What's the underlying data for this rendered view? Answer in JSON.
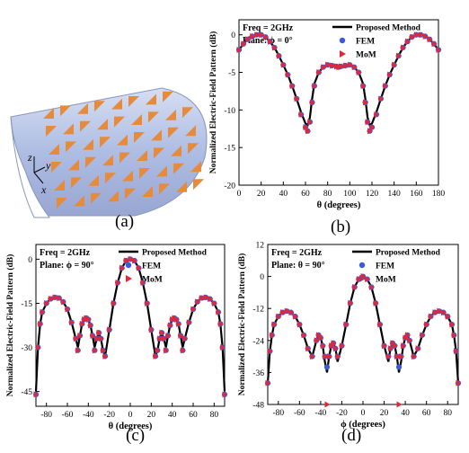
{
  "palette": {
    "method": "#000000",
    "fem": "#3b5bd6",
    "mom": "#e0283a",
    "cyl_body": "#b9c7e8",
    "cyl_edge": "#8796bd",
    "patch": "#e68a3c"
  },
  "panel_a": {
    "caption": "(a)",
    "axes": {
      "z": "z",
      "y": "y",
      "x": "x"
    }
  },
  "chart_data": [
    {
      "id": "b",
      "type": "line",
      "caption": "(b)",
      "annotation_line1": "Freq = 2GHz",
      "annotation_line2": "Plane: ϕ = 0°",
      "xlabel": "θ (degrees)",
      "ylabel": "Normalized Electric-Field Pattern (dB)",
      "xlim": [
        0,
        180
      ],
      "ylim": [
        -20,
        2
      ],
      "xticks": [
        0,
        20,
        40,
        60,
        80,
        100,
        120,
        140,
        160,
        180
      ],
      "yticks": [
        0,
        -5,
        -10,
        -15,
        -20
      ],
      "legend": [
        "Proposed Method",
        "FEM",
        "MoM"
      ],
      "legend_position": "top-right",
      "x": [
        0,
        4,
        8,
        12,
        16,
        20,
        24,
        28,
        32,
        36,
        40,
        44,
        48,
        52,
        56,
        60,
        62,
        64,
        66,
        68,
        72,
        76,
        80,
        84,
        88,
        90,
        92,
        96,
        100,
        104,
        108,
        112,
        114,
        116,
        118,
        120,
        124,
        128,
        132,
        136,
        140,
        144,
        148,
        152,
        156,
        160,
        164,
        168,
        172,
        176,
        180
      ],
      "series": [
        {
          "name": "Proposed Method",
          "values": [
            -2,
            -1.2,
            -0.6,
            -0.2,
            0,
            0,
            -0.3,
            -0.9,
            -1.7,
            -2.8,
            -4,
            -5.3,
            -6.8,
            -8.5,
            -10.3,
            -11.8,
            -12,
            -11,
            -8.5,
            -6.5,
            -5,
            -4.3,
            -4,
            -4.1,
            -4.2,
            -4.3,
            -4.2,
            -4.1,
            -4,
            -4.3,
            -5,
            -6.5,
            -8.5,
            -11,
            -12,
            -11.8,
            -10.3,
            -8.5,
            -6.8,
            -5.3,
            -4,
            -2.8,
            -1.7,
            -0.9,
            -0.3,
            0,
            0,
            -0.2,
            -0.6,
            -1.2,
            -2
          ]
        },
        {
          "name": "FEM",
          "values": [
            -2,
            -1.2,
            -0.6,
            -0.2,
            0,
            0,
            -0.3,
            -0.9,
            -1.7,
            -2.8,
            -4,
            -5.3,
            -6.8,
            -8.5,
            -10.6,
            -12.3,
            -12.8,
            -11.6,
            -9,
            -6.8,
            -5,
            -4.3,
            -4,
            -4.1,
            -4.2,
            -4.3,
            -4.2,
            -4.1,
            -4,
            -4.3,
            -5,
            -6.8,
            -9,
            -11.6,
            -12.8,
            -12.3,
            -10.6,
            -8.5,
            -6.8,
            -5.3,
            -4,
            -2.8,
            -1.7,
            -0.9,
            -0.3,
            0,
            0,
            -0.2,
            -0.6,
            -1.2,
            -2
          ]
        },
        {
          "name": "MoM",
          "values": [
            -2,
            -1.2,
            -0.6,
            -0.2,
            0,
            0,
            -0.3,
            -0.9,
            -1.7,
            -2.8,
            -4,
            -5.3,
            -6.8,
            -8.5,
            -10.6,
            -12.3,
            -12.8,
            -11.6,
            -9,
            -6.8,
            -5,
            -4.3,
            -4,
            -4.1,
            -4.2,
            -4.3,
            -4.2,
            -4.1,
            -4,
            -4.3,
            -5,
            -6.8,
            -9,
            -11.6,
            -12.8,
            -12.3,
            -10.6,
            -8.5,
            -6.8,
            -5.3,
            -4,
            -2.8,
            -1.7,
            -0.9,
            -0.3,
            0,
            0,
            -0.2,
            -0.6,
            -1.2,
            -2
          ]
        }
      ]
    },
    {
      "id": "c",
      "type": "line",
      "caption": "(c)",
      "annotation_line1": "Freq = 2GHz",
      "annotation_line2": "Plane: ϕ = 90°",
      "xlabel": "θ (degrees)",
      "ylabel": "Normalized Electric-Field Pattern (dB)",
      "xlim": [
        -90,
        90
      ],
      "ylim": [
        -50,
        5
      ],
      "xticks": [
        -80,
        -60,
        -40,
        -20,
        0,
        20,
        40,
        60,
        80
      ],
      "yticks": [
        0,
        -15,
        -30,
        -45
      ],
      "legend": [
        "Proposed Method",
        "FEM",
        "MoM"
      ],
      "legend_position": "top-right",
      "x": [
        -90,
        -88,
        -86,
        -84,
        -80,
        -76,
        -72,
        -68,
        -64,
        -60,
        -56,
        -52,
        -50,
        -48,
        -46,
        -44,
        -42,
        -40,
        -38,
        -36,
        -34,
        -32,
        -30,
        -28,
        -26,
        -24,
        -20,
        -16,
        -12,
        -8,
        -4,
        0,
        4,
        8,
        12,
        16,
        20,
        24,
        26,
        28,
        30,
        32,
        34,
        36,
        38,
        40,
        42,
        44,
        46,
        48,
        50,
        52,
        56,
        60,
        64,
        68,
        72,
        76,
        80,
        84,
        86,
        88,
        90
      ],
      "series": [
        {
          "name": "Proposed Method",
          "values": [
            -45,
            -30,
            -22,
            -18,
            -15,
            -13.5,
            -13,
            -13.2,
            -14.5,
            -17,
            -21.5,
            -27,
            -30,
            -26,
            -22,
            -20.5,
            -20,
            -20.5,
            -22.5,
            -26,
            -30,
            -27,
            -25,
            -27,
            -31,
            -33,
            -24,
            -15,
            -8,
            -3,
            -0.5,
            0,
            -0.5,
            -3,
            -8,
            -15,
            -24,
            -33,
            -31,
            -27,
            -25,
            -27,
            -30,
            -26,
            -22.5,
            -20.5,
            -20,
            -20.5,
            -22,
            -26,
            -30,
            -27,
            -21.5,
            -17,
            -14.5,
            -13.2,
            -13,
            -13.5,
            -15,
            -18,
            -22,
            -30,
            -45
          ]
        },
        {
          "name": "FEM",
          "values": [
            -46,
            -30,
            -22,
            -18,
            -15,
            -13.5,
            -13,
            -13.2,
            -14.5,
            -17,
            -21.5,
            -27,
            -31,
            -26,
            -22,
            -20.5,
            -20,
            -20.5,
            -22.5,
            -26,
            -31,
            -27,
            -25,
            -27,
            -31,
            -33,
            -24,
            -15,
            -8,
            -3,
            -0.5,
            0,
            -0.5,
            -3,
            -8,
            -15,
            -24,
            -33,
            -31,
            -27,
            -25,
            -27,
            -31,
            -26,
            -22.5,
            -20.5,
            -20,
            -20.5,
            -22,
            -26,
            -31,
            -27,
            -21.5,
            -17,
            -14.5,
            -13.2,
            -13,
            -13.5,
            -15,
            -18,
            -22,
            -30,
            -46
          ]
        },
        {
          "name": "MoM",
          "values": [
            -46,
            -30,
            -22,
            -18,
            -15,
            -13.5,
            -13,
            -13.2,
            -14.5,
            -17,
            -21.5,
            -27,
            -31,
            -26,
            -22,
            -20.5,
            -20,
            -20.5,
            -22.5,
            -26,
            -31,
            -27,
            -25,
            -27,
            -31,
            -33,
            -24,
            -15,
            -8,
            -3,
            -0.5,
            0,
            -0.5,
            -3,
            -8,
            -15,
            -24,
            -33,
            -31,
            -27,
            -25,
            -27,
            -31,
            -26,
            -22.5,
            -20.5,
            -20,
            -20.5,
            -22,
            -26,
            -31,
            -27,
            -21.5,
            -17,
            -14.5,
            -13.2,
            -13,
            -13.5,
            -15,
            -18,
            -22,
            -30,
            -46
          ]
        }
      ]
    },
    {
      "id": "d",
      "type": "line",
      "caption": "(d)",
      "annotation_line1": "Freq = 2GHz",
      "annotation_line2": "Plane: θ = 90°",
      "xlabel": "ϕ (degrees)",
      "ylabel": "Normalized Electric-Field Pattern (dB)",
      "xlim": [
        -90,
        90
      ],
      "ylim": [
        -48,
        12
      ],
      "xticks": [
        -80,
        -60,
        -40,
        -20,
        0,
        20,
        40,
        60,
        80
      ],
      "yticks": [
        12,
        0,
        -12,
        -24,
        -36,
        -48
      ],
      "legend": [
        "Proposed Method",
        "FEM",
        "MoM"
      ],
      "legend_position": "top-right",
      "x": [
        -90,
        -88,
        -86,
        -84,
        -80,
        -76,
        -72,
        -68,
        -64,
        -60,
        -56,
        -52,
        -48,
        -44,
        -42,
        -40,
        -38,
        -36,
        -34,
        -32,
        -30,
        -28,
        -26,
        -24,
        -20,
        -16,
        -12,
        -8,
        -4,
        0,
        4,
        8,
        12,
        16,
        20,
        24,
        26,
        28,
        30,
        32,
        34,
        36,
        38,
        40,
        42,
        44,
        48,
        52,
        56,
        60,
        64,
        68,
        72,
        76,
        80,
        84,
        86,
        88,
        90
      ],
      "series": [
        {
          "name": "Proposed Method",
          "values": [
            -40,
            -28,
            -22,
            -18,
            -15,
            -13.5,
            -13,
            -13.5,
            -15,
            -18,
            -22,
            -27,
            -30,
            -24,
            -22,
            -23,
            -26,
            -32,
            -36,
            -30,
            -26,
            -25,
            -27,
            -32,
            -26,
            -18,
            -10,
            -4,
            -1,
            0,
            -1,
            -4,
            -10,
            -18,
            -26,
            -32,
            -27,
            -25,
            -26,
            -30,
            -36,
            -32,
            -26,
            -23,
            -22,
            -24,
            -30,
            -27,
            -22,
            -18,
            -15,
            -13.5,
            -13,
            -13.5,
            -15,
            -18,
            -22,
            -28,
            -40
          ]
        },
        {
          "name": "FEM",
          "values": [
            -40,
            -28,
            -22,
            -18,
            -15,
            -13.5,
            -13,
            -13.5,
            -15,
            -18,
            -22,
            -27,
            -30,
            -24,
            -22,
            -23,
            -26,
            -30,
            -34,
            -30,
            -26,
            -25,
            -27,
            -30,
            -26,
            -18,
            -10,
            -4,
            -1,
            0,
            -1,
            -4,
            -10,
            -18,
            -26,
            -30,
            -27,
            -25,
            -26,
            -30,
            -34,
            -30,
            -26,
            -23,
            -22,
            -24,
            -30,
            -27,
            -22,
            -18,
            -15,
            -13.5,
            -13,
            -13.5,
            -15,
            -18,
            -22,
            -28,
            -40
          ]
        },
        {
          "name": "MoM",
          "values": [
            -40,
            -28,
            -22,
            -18,
            -15,
            -13.5,
            -13,
            -13.5,
            -15,
            -18,
            -22,
            -27,
            -30,
            -24,
            -22,
            -23,
            -26,
            -30,
            -48,
            -30,
            -26,
            -25,
            -27,
            -30,
            -26,
            -18,
            -10,
            -4,
            -1,
            0,
            -1,
            -4,
            -10,
            -18,
            -26,
            -30,
            -27,
            -25,
            -26,
            -30,
            -48,
            -30,
            -26,
            -23,
            -22,
            -24,
            -30,
            -27,
            -22,
            -18,
            -15,
            -13.5,
            -13,
            -13.5,
            -15,
            -18,
            -22,
            -28,
            -40
          ]
        }
      ]
    }
  ]
}
